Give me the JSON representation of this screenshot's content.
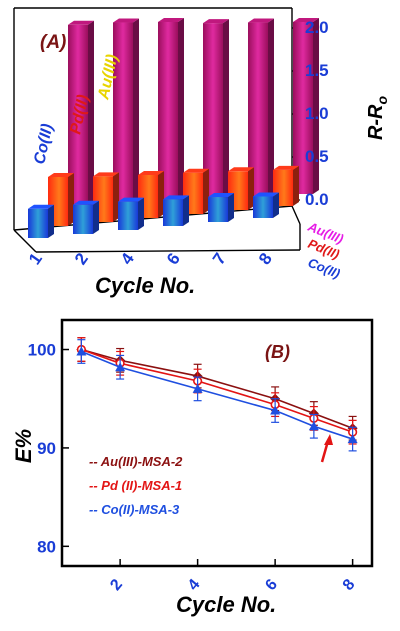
{
  "chart_data": [
    {
      "type": "bar",
      "panel_label": "(A)",
      "categories": [
        "1",
        "2",
        "4",
        "6",
        "7",
        "8"
      ],
      "series": [
        {
          "name": "Co(II)",
          "values": [
            0.34,
            0.34,
            0.33,
            0.31,
            0.29,
            0.25
          ],
          "color": "#1f53ff"
        },
        {
          "name": "Pd(II)",
          "values": [
            0.57,
            0.53,
            0.5,
            0.48,
            0.45,
            0.42
          ],
          "color": "#ff3b1a"
        },
        {
          "name": "Au(III)",
          "values": [
            2.2,
            2.18,
            2.14,
            2.08,
            2.04,
            2.0
          ],
          "color": "#c0187e"
        }
      ],
      "series_label_colors": {
        "Co(II)": "#1a3dd6",
        "Pd(II)": "#e01818",
        "Au(III)": "#e8d400"
      },
      "depth_labels": [
        "Au(III)",
        "Pd(II)",
        "Co(II)"
      ],
      "depth_label_colors": [
        "#e61ce6",
        "#e01818",
        "#1a3dd6"
      ],
      "xlabel": "Cycle No.",
      "zlabel": "R-R",
      "zlabel_sub": "o",
      "zticks": [
        "0.0",
        "0.5",
        "1.0",
        "1.5",
        "2.0"
      ],
      "zlim": [
        0,
        2.2
      ]
    },
    {
      "type": "line",
      "panel_label": "(B)",
      "x": [
        1,
        2,
        4,
        6,
        7,
        8
      ],
      "series": [
        {
          "name": "Au(III)-MSA-2",
          "values": [
            100.0,
            98.9,
            97.3,
            95.0,
            93.5,
            92.0
          ],
          "color": "#8b1010",
          "marker": "diamond"
        },
        {
          "name": "Pd (II)-MSA-1",
          "values": [
            100.0,
            98.6,
            96.8,
            94.4,
            93.0,
            91.6
          ],
          "color": "#e31414",
          "marker": "circle"
        },
        {
          "name": "Co(II)-MSA-3",
          "values": [
            99.8,
            98.2,
            96.0,
            93.8,
            92.2,
            90.9
          ],
          "color": "#1f4fe0",
          "marker": "triangle"
        }
      ],
      "error": 1.2,
      "xlabel": "Cycle No.",
      "ylabel": "E%",
      "xticks": [
        "2",
        "4",
        "6",
        "8"
      ],
      "yticks": [
        "80",
        "90",
        "100"
      ],
      "xlim": [
        0.5,
        8.5
      ],
      "ylim": [
        78,
        103
      ],
      "legend_position": "left",
      "arrow_color": "#e31414"
    }
  ]
}
